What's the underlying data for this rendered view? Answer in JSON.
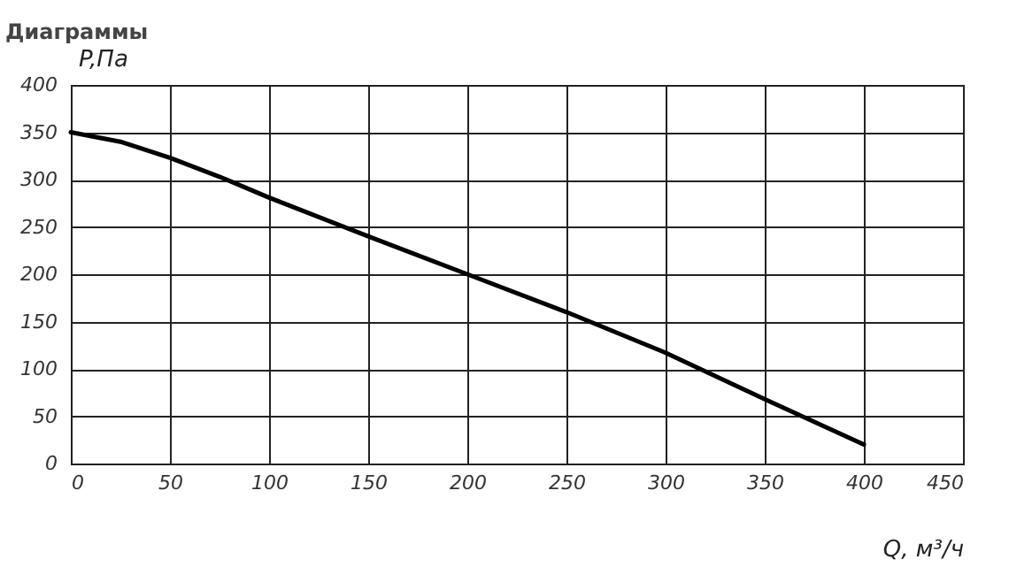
{
  "chart_data": {
    "type": "line",
    "title": "Диаграммы",
    "xlabel": "Q, м³/ч",
    "ylabel": "P,Па",
    "x": [
      0,
      25,
      50,
      75,
      100,
      150,
      200,
      250,
      300,
      350,
      400
    ],
    "series": [
      {
        "color": "#000000",
        "values": [
          350,
          340,
          323,
          303,
          281,
          240,
          200,
          160,
          117,
          68,
          20
        ]
      }
    ],
    "xlim": [
      0,
      450
    ],
    "xticks": [
      0,
      50,
      100,
      150,
      200,
      250,
      300,
      350,
      400,
      450
    ],
    "ylim": [
      0,
      400
    ],
    "yticks": [
      0,
      50,
      100,
      150,
      200,
      250,
      300,
      350,
      400
    ],
    "grid": true,
    "legend": false,
    "marker": "none",
    "line_style": "solid"
  }
}
